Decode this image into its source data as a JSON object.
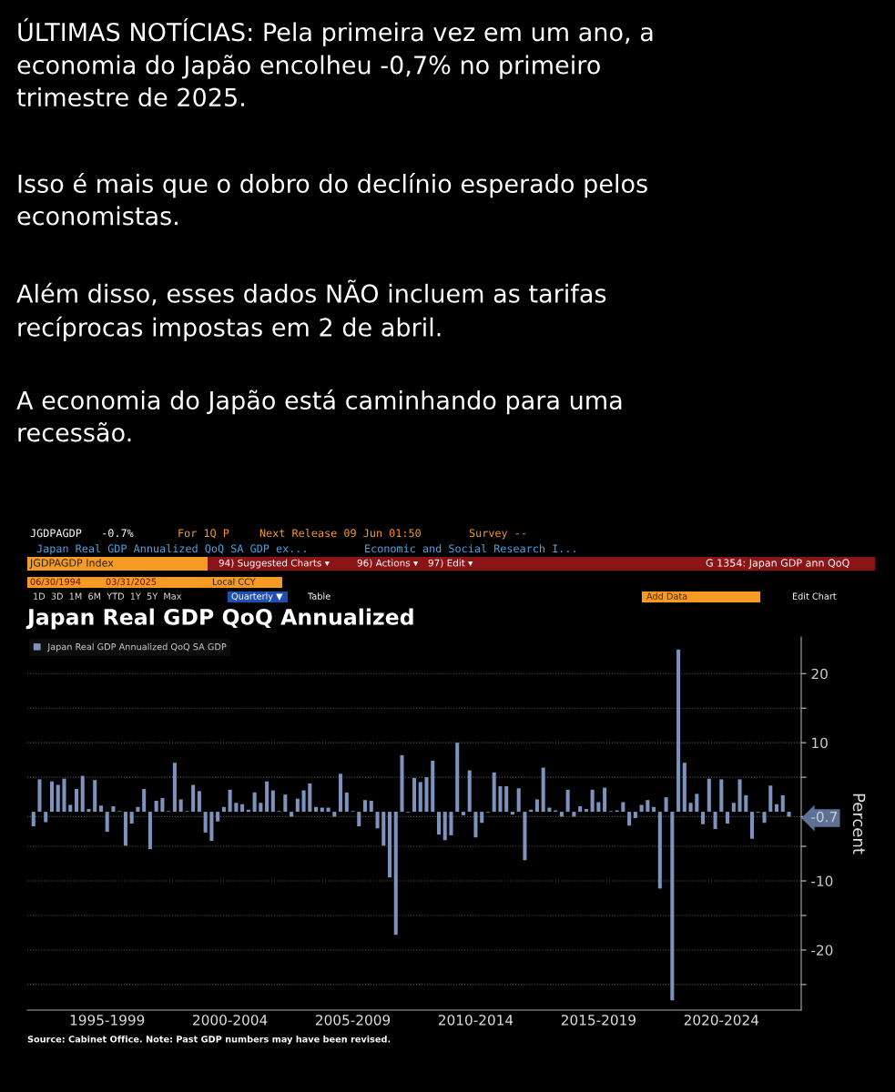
{
  "chart_data": {
    "type": "bar",
    "title": "Japan Real GDP QoQ Annualized",
    "ylabel": "Percent",
    "categories": [
      null,
      null,
      null,
      null,
      null,
      null,
      null,
      null,
      null,
      null,
      null,
      null,
      "1995-1999",
      null,
      null,
      null,
      null,
      null,
      null,
      null,
      null,
      null,
      null,
      null,
      null,
      null,
      null,
      null,
      null,
      null,
      null,
      null,
      "2000-2004",
      null,
      null,
      null,
      null,
      null,
      null,
      null,
      null,
      null,
      null,
      null,
      null,
      null,
      null,
      null,
      null,
      null,
      null,
      null,
      "2005-2009",
      null,
      null,
      null,
      null,
      null,
      null,
      null,
      null,
      null,
      null,
      null,
      null,
      null,
      null,
      null,
      null,
      null,
      null,
      null,
      "2010-2014",
      null,
      null,
      null,
      null,
      null,
      null,
      null,
      null,
      null,
      null,
      null,
      null,
      null,
      null,
      null,
      null,
      null,
      null,
      null,
      "2015-2019",
      null,
      null,
      null,
      null,
      null,
      null,
      null,
      null,
      null,
      null,
      null,
      null,
      null,
      null,
      null,
      null,
      null,
      null,
      null,
      "2020-2024",
      null,
      null,
      null,
      null,
      null,
      null,
      null,
      null,
      null,
      null,
      null
    ],
    "series": [
      {
        "name": "Japan Real GDP Annualized QoQ SA GDP",
        "color": "#7b93bd",
        "values": [
          -2.1,
          4.7,
          -1.5,
          4.4,
          3.9,
          4.8,
          1.0,
          3.3,
          5.2,
          0.4,
          4.6,
          0.9,
          -2.9,
          0.8,
          0.1,
          -4.9,
          -1.7,
          0.7,
          3.3,
          -5.4,
          1.6,
          2.0,
          0.1,
          7.1,
          1.8,
          0.1,
          3.9,
          3.0,
          -3.0,
          -4.2,
          -1.4,
          0.7,
          3.2,
          1.3,
          1.1,
          0.3,
          2.8,
          1.3,
          4.4,
          3.1,
          0.1,
          2.5,
          -0.7,
          1.9,
          3.1,
          4.1,
          0.7,
          0.6,
          0.6,
          -0.7,
          5.5,
          2.8,
          0.1,
          -2.1,
          1.7,
          1.6,
          -2.4,
          -4.9,
          -9.5,
          -17.8,
          8.2,
          -0.1,
          4.9,
          4.3,
          5.0,
          7.4,
          -3.3,
          -4.1,
          -3.4,
          10.0,
          -0.5,
          6.0,
          -3.7,
          -1.6,
          -0.1,
          5.7,
          3.7,
          3.7,
          -0.4,
          3.4,
          -7.0,
          0.3,
          1.8,
          6.4,
          0.6,
          0.2,
          -0.7,
          3.2,
          -0.7,
          0.8,
          0.4,
          3.2,
          1.4,
          3.5,
          0.1,
          0.2,
          1.4,
          -2.0,
          -0.9,
          1.0,
          1.7,
          0.7,
          -11.1,
          2.1,
          -27.3,
          23.5,
          7.1,
          1.3,
          2.6,
          -1.8,
          4.8,
          -2.5,
          4.7,
          -1.7,
          1.3,
          4.7,
          2.4,
          -3.9,
          -0.1,
          -1.6,
          3.8,
          1.1,
          2.4,
          -0.7
        ]
      }
    ],
    "ylim": [
      -28.7,
      25.3
    ],
    "yticks": [
      {
        "value": -25,
        "label": null
      },
      -20,
      {
        "value": -15,
        "label": null
      },
      -10,
      {
        "value": -5,
        "label": null
      },
      {
        "value": -0.7,
        "label": "-0.7"
      },
      {
        "value": 5,
        "label": null
      },
      10,
      {
        "value": 15,
        "label": null
      },
      20
    ],
    "grid": "y",
    "legend": "top left",
    "annotations": [
      "ÚLTIMAS NOTÍCIAS: Pela primeira vez em um ano, a\neconomia do Japão encolheu -0,7% no primeiro\ntrimestre de 2025.",
      "Isso é mais que o dobro do declínio esperado pelos\neconomistas.",
      "Além disso, esses dados NÃO incluem as tarifas\nrecíprocas impostas em 2 de abril.",
      "A economia do Japão está caminhando para uma\nrecessão.",
      "JGDPAGDP   -0.7%",
      "For 1Q P",
      "Next Release 09 Jun 01:50",
      "Survey --",
      "Japan Real GDP Annualized QoQ SA GDP ex...",
      "Economic and Social Research I...",
      "JGDPAGDP Index",
      "94) Suggested Charts ▾",
      "96) Actions ▾",
      "97) Edit ▾",
      "G 1354: Japan GDP ann QoQ",
      "06/30/1994",
      "03/31/2025",
      "Local CCY",
      "1D  3D  1M  6M  YTD  1Y  5Y  Max",
      "Quarterly ▼",
      "Table",
      "Add Data",
      "Edit Chart",
      "Source: Cabinet Office. Note: Past GDP numbers may have been revised."
    ]
  }
}
